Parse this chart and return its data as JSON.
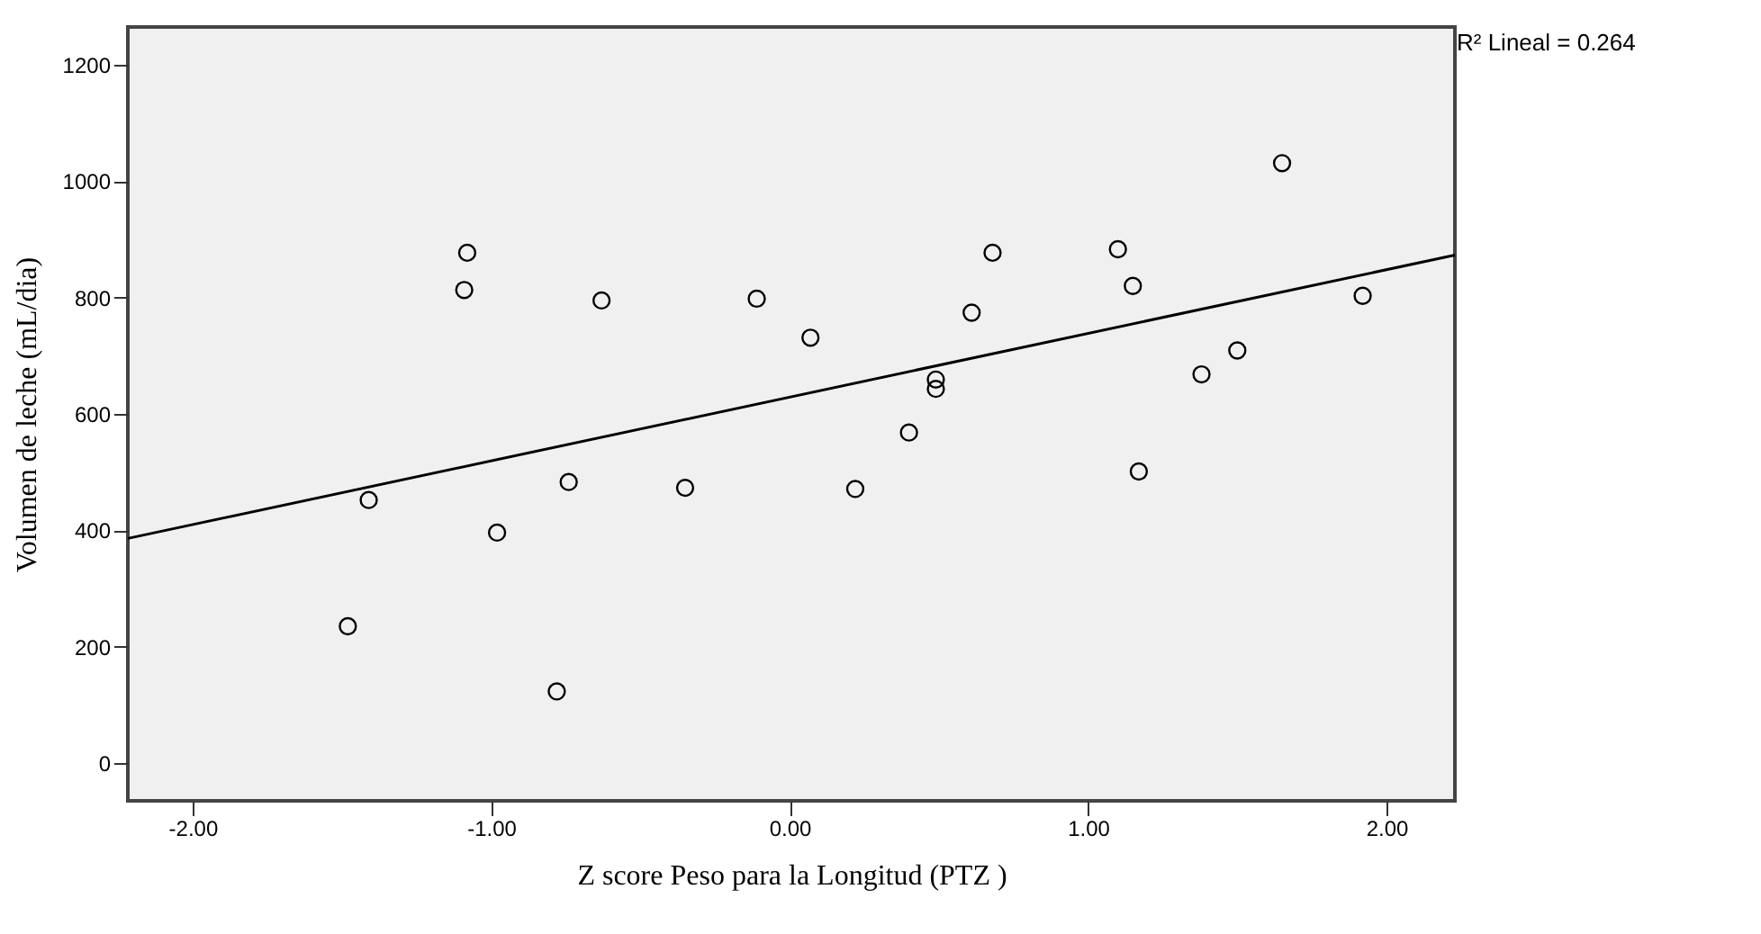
{
  "chart_data": {
    "type": "scatter",
    "xlabel": "Z score Peso para la Longitud (PTZ )",
    "ylabel": "Volumen de leche (mL/dia)",
    "annotations": [
      "R² Lineal = 0.264"
    ],
    "xlim": [
      -2.217,
      2.229
    ],
    "ylim": [
      -65,
      1265
    ],
    "xticks": [
      {
        "value": -2,
        "label": "-2.00"
      },
      {
        "value": -1,
        "label": "-1.00"
      },
      {
        "value": 0,
        "label": "0.00"
      },
      {
        "value": 1,
        "label": "1.00"
      },
      {
        "value": 2,
        "label": "2.00"
      }
    ],
    "yticks": [
      0,
      200,
      400,
      600,
      800,
      1000,
      1200
    ],
    "grid": false,
    "series": [
      {
        "color": "#000000",
        "marker": "circle",
        "x": [
          -1.48,
          -1.41,
          -1.08,
          -1.09,
          -0.98,
          -0.63,
          -0.74,
          -0.78,
          -0.35,
          -0.11,
          0.07,
          0.22,
          0.4,
          0.49,
          0.49,
          0.61,
          0.68,
          1.1,
          1.15,
          1.17,
          1.38,
          1.5,
          1.65,
          1.92
        ],
        "values": [
          235,
          452,
          877,
          813,
          396,
          795,
          483,
          123,
          473,
          798,
          731,
          471,
          568,
          659,
          643,
          774,
          877,
          883,
          820,
          501,
          668,
          709,
          1031,
          803
        ]
      },
      {
        "type": "line",
        "color": "#000000",
        "line_style": "solid",
        "marker": "none",
        "x": [
          -2.217,
          2.229
        ],
        "values": [
          386,
          873
        ]
      }
    ]
  }
}
